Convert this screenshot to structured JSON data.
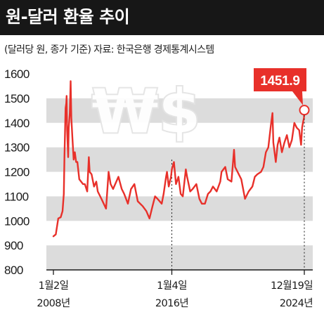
{
  "header": {
    "title": "원-달러 환율 추이",
    "subtitle": "(달러당 원, 종가 기준)  자료: 한국은행 경제통계시스템"
  },
  "watermark": "₩$",
  "colors": {
    "line": "#e8302a",
    "band": "#dcdcdc",
    "callout": "#e8302a",
    "title_bg": "#171717"
  },
  "chart_data": {
    "type": "line",
    "title": "원-달러 환율 추이",
    "ylim": [
      800,
      1600
    ],
    "yticks": [
      800,
      900,
      1000,
      1100,
      1200,
      1300,
      1400,
      1500,
      1600
    ],
    "ytick_labels": [
      "800",
      "900",
      "1000",
      "1100",
      "1200",
      "1300",
      "1400",
      "1500",
      "1600"
    ],
    "xlim": [
      "2008-01-02",
      "2024-12-19"
    ],
    "xtick_labels": [
      {
        "date": "2008-01-02",
        "line1": "1월2일",
        "line2": "2008년"
      },
      {
        "date": "2016-01-04",
        "line1": "1월4일",
        "line2": "2016년"
      },
      {
        "date": "2024-12-19",
        "line1": "12월19일",
        "line2": "2024년"
      }
    ],
    "annotation": {
      "date": "2024-12-19",
      "value": 1451.9,
      "label": "1451.9"
    },
    "series": [
      {
        "x": [
          "2008-01-02",
          "2008-03-01",
          "2008-05-01",
          "2008-07-01",
          "2008-08-15",
          "2008-09-15",
          "2008-10-01",
          "2008-10-15",
          "2008-10-28",
          "2008-11-15",
          "2008-11-24",
          "2008-12-05",
          "2008-12-31",
          "2009-01-15",
          "2009-02-10",
          "2009-03-03",
          "2009-03-20",
          "2009-04-15",
          "2009-05-15",
          "2009-06-15",
          "2009-07-15",
          "2009-08-15",
          "2009-10-01",
          "2009-11-15",
          "2010-01-01",
          "2010-02-15",
          "2010-04-15",
          "2010-05-25",
          "2010-06-15",
          "2010-08-01",
          "2010-10-01",
          "2010-11-25",
          "2011-01-01",
          "2011-04-01",
          "2011-07-25",
          "2011-09-26",
          "2011-11-15",
          "2012-01-15",
          "2012-05-25",
          "2012-08-15",
          "2012-10-15",
          "2013-01-15",
          "2013-04-01",
          "2013-06-24",
          "2013-09-15",
          "2014-01-15",
          "2014-04-15",
          "2014-07-01",
          "2014-09-15",
          "2014-11-15",
          "2015-01-15",
          "2015-04-29",
          "2015-06-15",
          "2015-08-15",
          "2015-09-07",
          "2015-10-20",
          "2015-12-15",
          "2016-01-04",
          "2016-02-25",
          "2016-04-15",
          "2016-06-15",
          "2016-08-10",
          "2016-10-01",
          "2016-12-15",
          "2017-01-15",
          "2017-04-01",
          "2017-06-01",
          "2017-09-01",
          "2017-11-15",
          "2018-01-15",
          "2018-04-01",
          "2018-06-15",
          "2018-08-15",
          "2018-10-15",
          "2019-01-15",
          "2019-04-15",
          "2019-05-15",
          "2019-08-15",
          "2019-10-15",
          "2020-01-15",
          "2020-03-19",
          "2020-04-15",
          "2020-06-15",
          "2020-09-15",
          "2020-12-15",
          "2021-03-15",
          "2021-06-15",
          "2021-08-15",
          "2021-10-15",
          "2022-01-15",
          "2022-03-15",
          "2022-05-15",
          "2022-07-15",
          "2022-09-15",
          "2022-10-25",
          "2022-11-15",
          "2023-01-15",
          "2023-03-01",
          "2023-04-15",
          "2023-06-15",
          "2023-08-15",
          "2023-10-15",
          "2023-12-15",
          "2024-02-15",
          "2024-04-16",
          "2024-06-15",
          "2024-08-15",
          "2024-09-30",
          "2024-10-25",
          "2024-11-15",
          "2024-12-10",
          "2024-12-19"
        ],
        "values": [
          937,
          945,
          1010,
          1015,
          1040,
          1110,
          1260,
          1360,
          1460,
          1480,
          1510,
          1370,
          1260,
          1380,
          1440,
          1570,
          1420,
          1340,
          1250,
          1280,
          1240,
          1240,
          1170,
          1160,
          1150,
          1150,
          1120,
          1260,
          1200,
          1190,
          1140,
          1160,
          1120,
          1090,
          1050,
          1200,
          1150,
          1130,
          1180,
          1130,
          1110,
          1070,
          1130,
          1150,
          1080,
          1060,
          1040,
          1010,
          1060,
          1100,
          1090,
          1070,
          1110,
          1180,
          1200,
          1140,
          1180,
          1210,
          1240,
          1150,
          1180,
          1110,
          1100,
          1210,
          1180,
          1120,
          1130,
          1150,
          1090,
          1070,
          1070,
          1110,
          1120,
          1140,
          1120,
          1160,
          1200,
          1220,
          1170,
          1160,
          1290,
          1220,
          1200,
          1170,
          1090,
          1120,
          1140,
          1180,
          1190,
          1200,
          1220,
          1280,
          1300,
          1390,
          1440,
          1320,
          1240,
          1310,
          1340,
          1280,
          1320,
          1350,
          1300,
          1330,
          1400,
          1380,
          1370,
          1310,
          1380,
          1400,
          1420,
          1452
        ]
      }
    ]
  }
}
